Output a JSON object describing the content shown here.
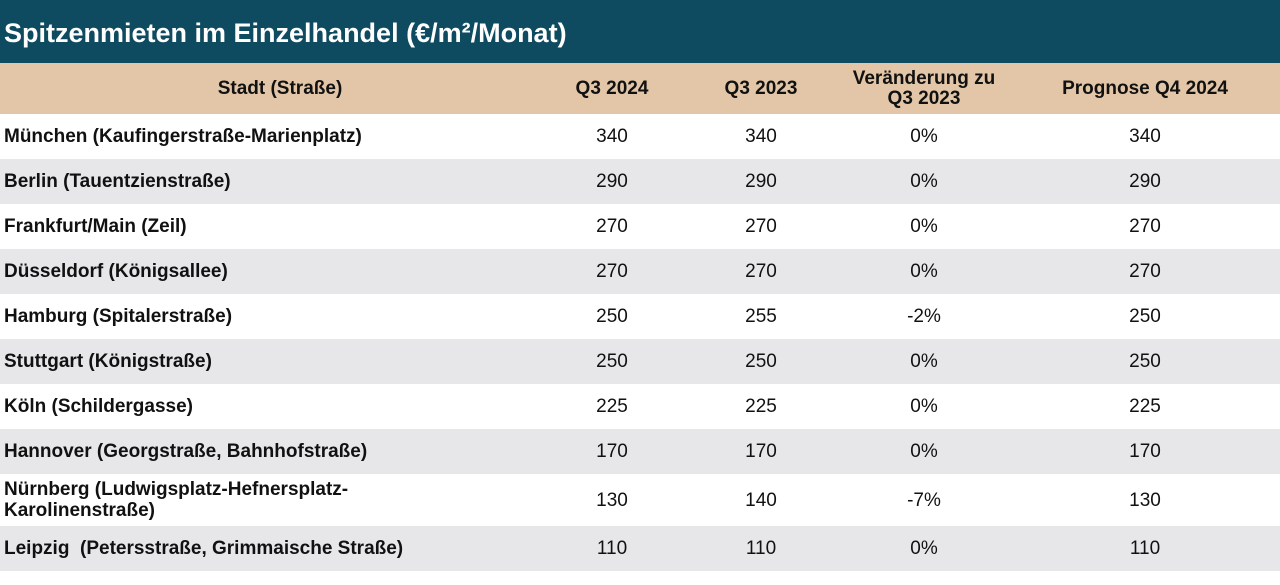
{
  "title": "Spitzenmieten im Einzelhandel (€/m²/Monat)",
  "colors": {
    "title_bg": "#0e4a60",
    "header_bg": "#e2c6a7",
    "stripe_bg": "#e7e7ea"
  },
  "table": {
    "headers": {
      "city": "Stadt (Straße)",
      "q3_2024": "Q3 2024",
      "q3_2023": "Q3 2023",
      "change": "Veränderung zu Q3 2023",
      "forecast": "Prognose Q4 2024"
    },
    "rows": [
      {
        "city": "München (Kaufingerstraße-Marienplatz)",
        "q3_2024": "340",
        "q3_2023": "340",
        "change": "0%",
        "forecast": "340"
      },
      {
        "city": "Berlin (Tauentzienstraße)",
        "q3_2024": "290",
        "q3_2023": "290",
        "change": "0%",
        "forecast": "290"
      },
      {
        "city": "Frankfurt/Main (Zeil)",
        "q3_2024": "270",
        "q3_2023": "270",
        "change": "0%",
        "forecast": "270"
      },
      {
        "city": "Düsseldorf (Königsallee)",
        "q3_2024": "270",
        "q3_2023": "270",
        "change": "0%",
        "forecast": "270"
      },
      {
        "city": "Hamburg (Spitalerstraße)",
        "q3_2024": "250",
        "q3_2023": "255",
        "change": "-2%",
        "forecast": "250"
      },
      {
        "city": "Stuttgart (Königstraße)",
        "q3_2024": "250",
        "q3_2023": "250",
        "change": "0%",
        "forecast": "250"
      },
      {
        "city": "Köln (Schildergasse)",
        "q3_2024": "225",
        "q3_2023": "225",
        "change": "0%",
        "forecast": "225"
      },
      {
        "city": "Hannover (Georgstraße, Bahnhofstraße)",
        "q3_2024": "170",
        "q3_2023": "170",
        "change": "0%",
        "forecast": "170"
      },
      {
        "city": "Nürnberg (Ludwigsplatz-Hefnersplatz-Karolinenstraße)",
        "q3_2024": "130",
        "q3_2023": "140",
        "change": "-7%",
        "forecast": "130"
      },
      {
        "city": "Leipzig  (Petersstraße, Grimmaische Straße)",
        "q3_2024": "110",
        "q3_2023": "110",
        "change": "0%",
        "forecast": "110"
      }
    ]
  }
}
